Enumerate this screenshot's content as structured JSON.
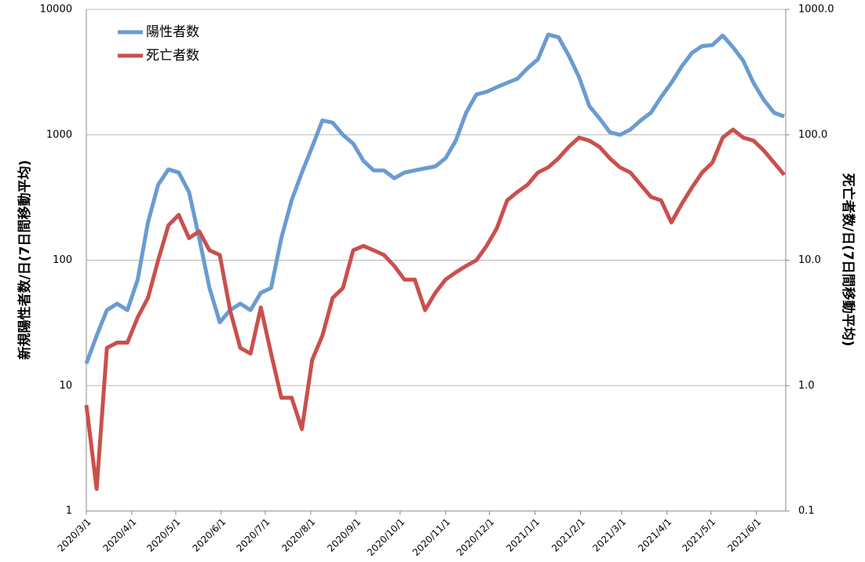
{
  "chart_data": {
    "type": "line",
    "y_label": "新規陽性者数/日(7日間移動平均)",
    "y2_label": "死亡者数/日(7日間移動平均)",
    "log_scale": true,
    "grid": true,
    "legend": "upper left",
    "x": [
      "2020/3/1",
      "2020/3/8",
      "2020/3/15",
      "2020/3/22",
      "2020/3/29",
      "2020/4/5",
      "2020/4/12",
      "2020/4/19",
      "2020/4/26",
      "2020/5/3",
      "2020/5/10",
      "2020/5/17",
      "2020/5/24",
      "2020/5/31",
      "2020/6/7",
      "2020/6/14",
      "2020/6/21",
      "2020/6/28",
      "2020/7/5",
      "2020/7/12",
      "2020/7/19",
      "2020/7/26",
      "2020/8/2",
      "2020/8/9",
      "2020/8/16",
      "2020/8/23",
      "2020/8/30",
      "2020/9/6",
      "2020/9/13",
      "2020/9/20",
      "2020/9/27",
      "2020/10/4",
      "2020/10/11",
      "2020/10/18",
      "2020/10/25",
      "2020/11/1",
      "2020/11/8",
      "2020/11/15",
      "2020/11/22",
      "2020/11/29",
      "2020/12/6",
      "2020/12/13",
      "2020/12/20",
      "2020/12/27",
      "2021/1/3",
      "2021/1/10",
      "2021/1/17",
      "2021/1/24",
      "2021/1/31",
      "2021/2/7",
      "2021/2/14",
      "2021/2/21",
      "2021/2/28",
      "2021/3/7",
      "2021/3/14",
      "2021/3/21",
      "2021/3/28",
      "2021/4/4",
      "2021/4/11",
      "2021/4/18",
      "2021/4/25",
      "2021/5/2",
      "2021/5/9",
      "2021/5/16",
      "2021/5/23",
      "2021/5/30",
      "2021/6/6",
      "2021/6/13",
      "2021/6/20"
    ],
    "xlim": [
      "2020/3/1",
      "2021/6/21"
    ],
    "xticks": [
      "2020/3/1",
      "2020/4/1",
      "2020/5/1",
      "2020/6/1",
      "2020/7/1",
      "2020/8/1",
      "2020/9/1",
      "2020/10/1",
      "2020/11/1",
      "2020/12/1",
      "2021/1/1",
      "2021/2/1",
      "2021/3/1",
      "2021/4/1",
      "2021/5/1",
      "2021/6/1"
    ],
    "ylim": [
      1,
      10000
    ],
    "yticks": [
      1,
      10,
      100,
      1000,
      10000
    ],
    "y2lim": [
      0.1,
      1000
    ],
    "y2ticks": [
      0.1,
      {
        "value": 1,
        "label": "1.0"
      },
      {
        "value": 10,
        "label": "10.0"
      },
      {
        "value": 100,
        "label": "100.0"
      },
      {
        "value": 1000,
        "label": "1000.0"
      }
    ],
    "series": [
      {
        "name": "陽性者数",
        "color": "#6a9bd1",
        "values": [
          15,
          25,
          40,
          45,
          40,
          70,
          200,
          400,
          530,
          500,
          350,
          150,
          60,
          32,
          40,
          45,
          40,
          55,
          60,
          150,
          300,
          500,
          800,
          1300,
          1250,
          1000,
          850,
          620,
          520,
          520,
          450,
          500,
          520,
          540,
          560,
          650,
          900,
          1500,
          2100,
          2200,
          2400,
          2600,
          2800,
          3400,
          4000,
          6300,
          6000,
          4300,
          2900,
          1700,
          1350,
          1050,
          1000,
          1100,
          1300,
          1500,
          2000,
          2600,
          3500,
          4500,
          5100,
          5200,
          6200,
          5000,
          3900,
          2600,
          1900,
          1500,
          1400
        ]
      },
      {
        "name": "死亡者数",
        "color": "#c9504d",
        "axis": "y2",
        "values": [
          0.7,
          0.15,
          2.0,
          2.2,
          2.2,
          3.5,
          5,
          10,
          19,
          23,
          15,
          17,
          12,
          11,
          4,
          2,
          1.8,
          4.2,
          1.8,
          0.8,
          0.8,
          0.45,
          1.6,
          2.5,
          5,
          6,
          12,
          13,
          12,
          11,
          9,
          7,
          7,
          4,
          5.5,
          7,
          8,
          9,
          10,
          13,
          18,
          30,
          35,
          40,
          50,
          55,
          65,
          80,
          95,
          90,
          80,
          65,
          55,
          50,
          40,
          32,
          30,
          20,
          28,
          38,
          50,
          60,
          95,
          110,
          95,
          90,
          75,
          60,
          48
        ]
      }
    ]
  }
}
